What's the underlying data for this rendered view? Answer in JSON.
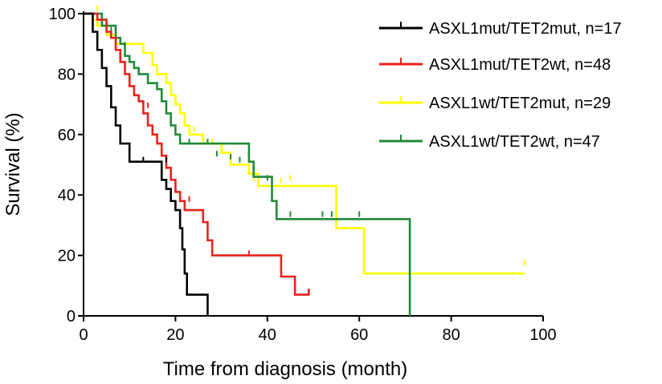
{
  "chart_data": {
    "type": "line",
    "step": true,
    "xlabel": "Time from diagnosis (month)",
    "ylabel": "Survival (%)",
    "xlim": [
      0,
      100
    ],
    "ylim": [
      0,
      100
    ],
    "xticks": [
      0,
      20,
      40,
      60,
      80,
      100
    ],
    "yticks": [
      0,
      20,
      40,
      60,
      80,
      100
    ],
    "grid": false,
    "legend": "top-right",
    "series": [
      {
        "name": "ASXL1mut/TET2mut, n=17",
        "color": "#000000",
        "points": [
          [
            0,
            100
          ],
          [
            2,
            94
          ],
          [
            3,
            88
          ],
          [
            4,
            82
          ],
          [
            5,
            76
          ],
          [
            6,
            69
          ],
          [
            7,
            63
          ],
          [
            8,
            57
          ],
          [
            10,
            51
          ],
          [
            17,
            45
          ],
          [
            18,
            42
          ],
          [
            19,
            38
          ],
          [
            20,
            35
          ],
          [
            21,
            29
          ],
          [
            21.5,
            22
          ],
          [
            22,
            14
          ],
          [
            22.5,
            7
          ],
          [
            27,
            0
          ]
        ],
        "censored": [
          [
            13,
            51
          ],
          [
            18,
            51
          ]
        ]
      },
      {
        "name": "ASXL1mut/TET2wt, n=48",
        "color": "#e8231a",
        "points": [
          [
            0,
            100
          ],
          [
            3,
            98
          ],
          [
            5,
            94
          ],
          [
            6,
            92
          ],
          [
            7,
            88
          ],
          [
            8,
            84
          ],
          [
            9,
            80
          ],
          [
            10,
            76
          ],
          [
            11,
            73
          ],
          [
            12,
            71
          ],
          [
            13,
            67
          ],
          [
            14,
            63
          ],
          [
            15,
            60
          ],
          [
            16,
            57
          ],
          [
            17,
            53
          ],
          [
            18,
            49
          ],
          [
            19,
            45
          ],
          [
            20,
            41
          ],
          [
            21,
            38
          ],
          [
            22,
            35
          ],
          [
            26,
            31
          ],
          [
            27,
            25
          ],
          [
            28,
            20
          ],
          [
            43,
            13
          ],
          [
            46,
            7
          ],
          [
            49,
            9
          ]
        ],
        "censored": [
          [
            14,
            69
          ],
          [
            17,
            55
          ],
          [
            23,
            38
          ],
          [
            26,
            33
          ],
          [
            36,
            20
          ]
        ]
      },
      {
        "name": "ASXL1wt/TET2mut, n=29",
        "color": "#ffff00",
        "points": [
          [
            0,
            100
          ],
          [
            2,
            98
          ],
          [
            3,
            96
          ],
          [
            5,
            93
          ],
          [
            7,
            90
          ],
          [
            13,
            87
          ],
          [
            15,
            83
          ],
          [
            16,
            80
          ],
          [
            18,
            77
          ],
          [
            19,
            73
          ],
          [
            20,
            70
          ],
          [
            21,
            67
          ],
          [
            22,
            63
          ],
          [
            23,
            60
          ],
          [
            26,
            57
          ],
          [
            30,
            54
          ],
          [
            32,
            50
          ],
          [
            36,
            47
          ],
          [
            38,
            43
          ],
          [
            45,
            43
          ],
          [
            55,
            29
          ],
          [
            61,
            14
          ],
          [
            96,
            14
          ]
        ],
        "censored": [
          [
            3,
            101
          ],
          [
            6,
            93
          ],
          [
            24,
            61
          ],
          [
            28,
            57
          ],
          [
            37,
            45
          ],
          [
            43,
            44
          ],
          [
            45,
            45
          ],
          [
            96,
            17
          ]
        ]
      },
      {
        "name": "ASXL1wt/TET2wt, n=47",
        "color": "#218a3a",
        "points": [
          [
            0,
            100
          ],
          [
            4,
            96
          ],
          [
            7,
            92
          ],
          [
            8,
            90
          ],
          [
            9,
            86
          ],
          [
            10,
            84
          ],
          [
            11,
            82
          ],
          [
            12,
            80
          ],
          [
            14,
            77
          ],
          [
            16,
            75
          ],
          [
            17,
            71
          ],
          [
            18,
            67
          ],
          [
            19,
            63
          ],
          [
            20,
            60
          ],
          [
            21,
            57
          ],
          [
            36,
            51
          ],
          [
            37,
            46
          ],
          [
            41,
            38
          ],
          [
            42,
            32
          ],
          [
            71,
            32
          ],
          [
            71,
            0
          ]
        ],
        "censored": [
          [
            6,
            94
          ],
          [
            9,
            89
          ],
          [
            23,
            57
          ],
          [
            27,
            57
          ],
          [
            29,
            53
          ],
          [
            32,
            52
          ],
          [
            34,
            51
          ],
          [
            37,
            46
          ],
          [
            40,
            45
          ],
          [
            45,
            33
          ],
          [
            52,
            33
          ],
          [
            54,
            33
          ],
          [
            60,
            33
          ]
        ]
      }
    ]
  }
}
